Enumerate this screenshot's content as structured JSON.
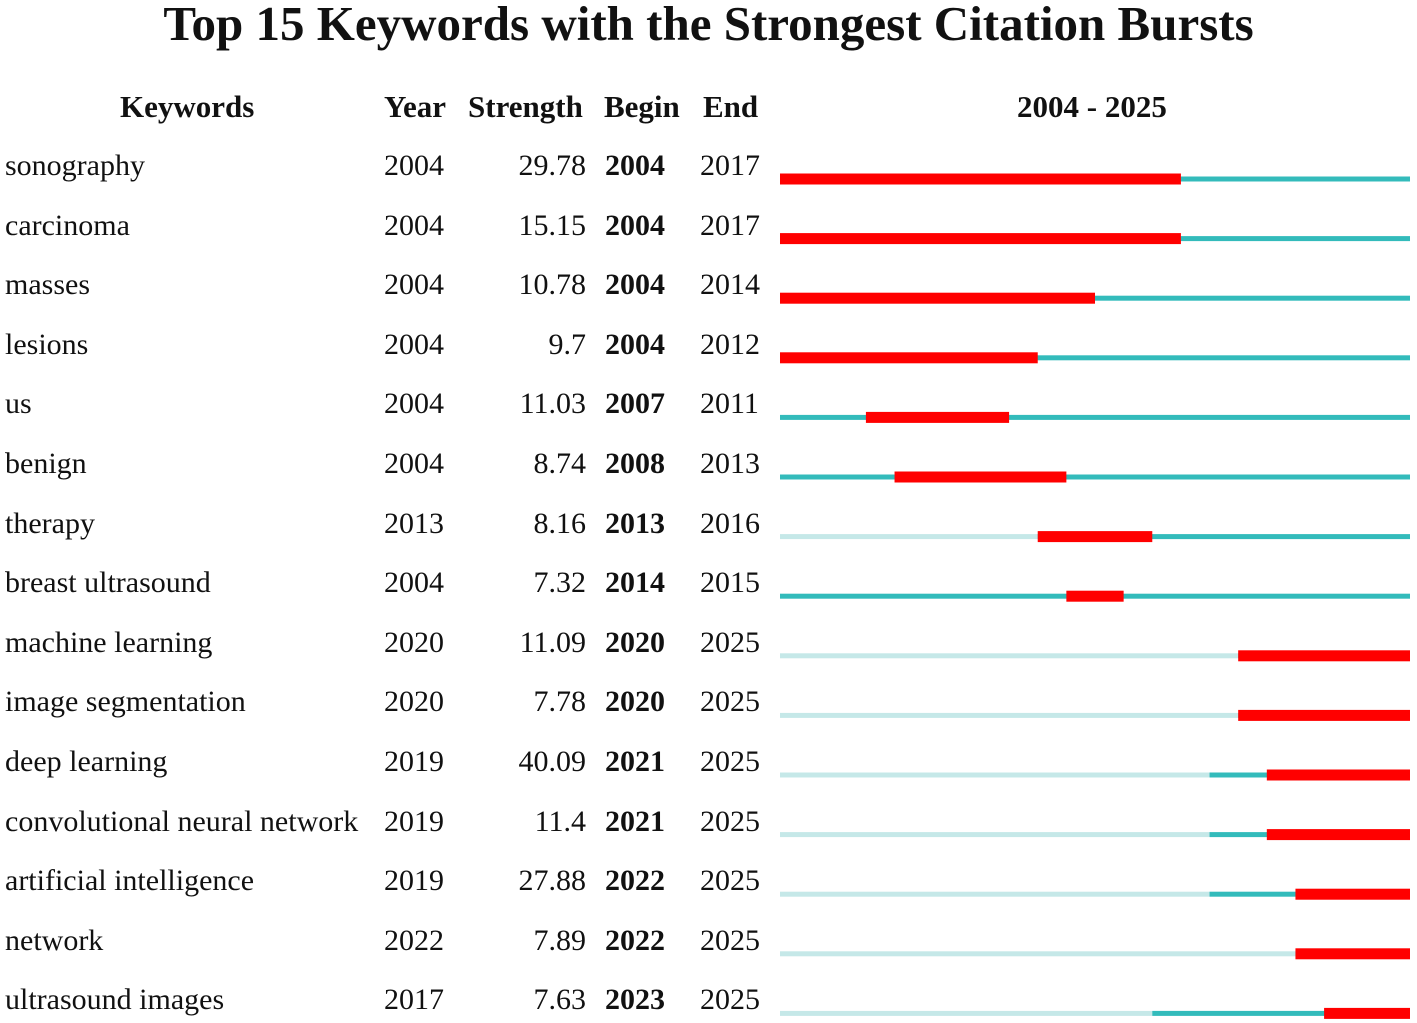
{
  "chart_data": {
    "type": "table",
    "title": "Top 15 Keywords with the Strongest Citation Bursts",
    "columns": [
      "Keywords",
      "Year",
      "Strength",
      "Begin",
      "End"
    ],
    "range_label": "2004 - 2025",
    "range": [
      2004,
      2025
    ],
    "colors": {
      "burst": "#ff0000",
      "active": "#33bbbb",
      "inactive": "#c5e8e8"
    },
    "rows": [
      {
        "keyword": "sonography",
        "year": "2004",
        "strength": "29.78",
        "begin": "2004",
        "end": "2017"
      },
      {
        "keyword": "carcinoma",
        "year": "2004",
        "strength": "15.15",
        "begin": "2004",
        "end": "2017"
      },
      {
        "keyword": "masses",
        "year": "2004",
        "strength": "10.78",
        "begin": "2004",
        "end": "2014"
      },
      {
        "keyword": "lesions",
        "year": "2004",
        "strength": "9.7",
        "begin": "2004",
        "end": "2012"
      },
      {
        "keyword": "us",
        "year": "2004",
        "strength": "11.03",
        "begin": "2007",
        "end": "2011"
      },
      {
        "keyword": "benign",
        "year": "2004",
        "strength": "8.74",
        "begin": "2008",
        "end": "2013"
      },
      {
        "keyword": "therapy",
        "year": "2013",
        "strength": "8.16",
        "begin": "2013",
        "end": "2016"
      },
      {
        "keyword": "breast ultrasound",
        "year": "2004",
        "strength": "7.32",
        "begin": "2014",
        "end": "2015"
      },
      {
        "keyword": "machine learning",
        "year": "2020",
        "strength": "11.09",
        "begin": "2020",
        "end": "2025"
      },
      {
        "keyword": "image segmentation",
        "year": "2020",
        "strength": "7.78",
        "begin": "2020",
        "end": "2025"
      },
      {
        "keyword": "deep learning",
        "year": "2019",
        "strength": "40.09",
        "begin": "2021",
        "end": "2025"
      },
      {
        "keyword": "convolutional neural network",
        "year": "2019",
        "strength": "11.4",
        "begin": "2021",
        "end": "2025"
      },
      {
        "keyword": "artificial intelligence",
        "year": "2019",
        "strength": "27.88",
        "begin": "2022",
        "end": "2025"
      },
      {
        "keyword": "network",
        "year": "2022",
        "strength": "7.89",
        "begin": "2022",
        "end": "2025"
      },
      {
        "keyword": "ultrasound images",
        "year": "2017",
        "strength": "7.63",
        "begin": "2023",
        "end": "2025"
      }
    ]
  }
}
